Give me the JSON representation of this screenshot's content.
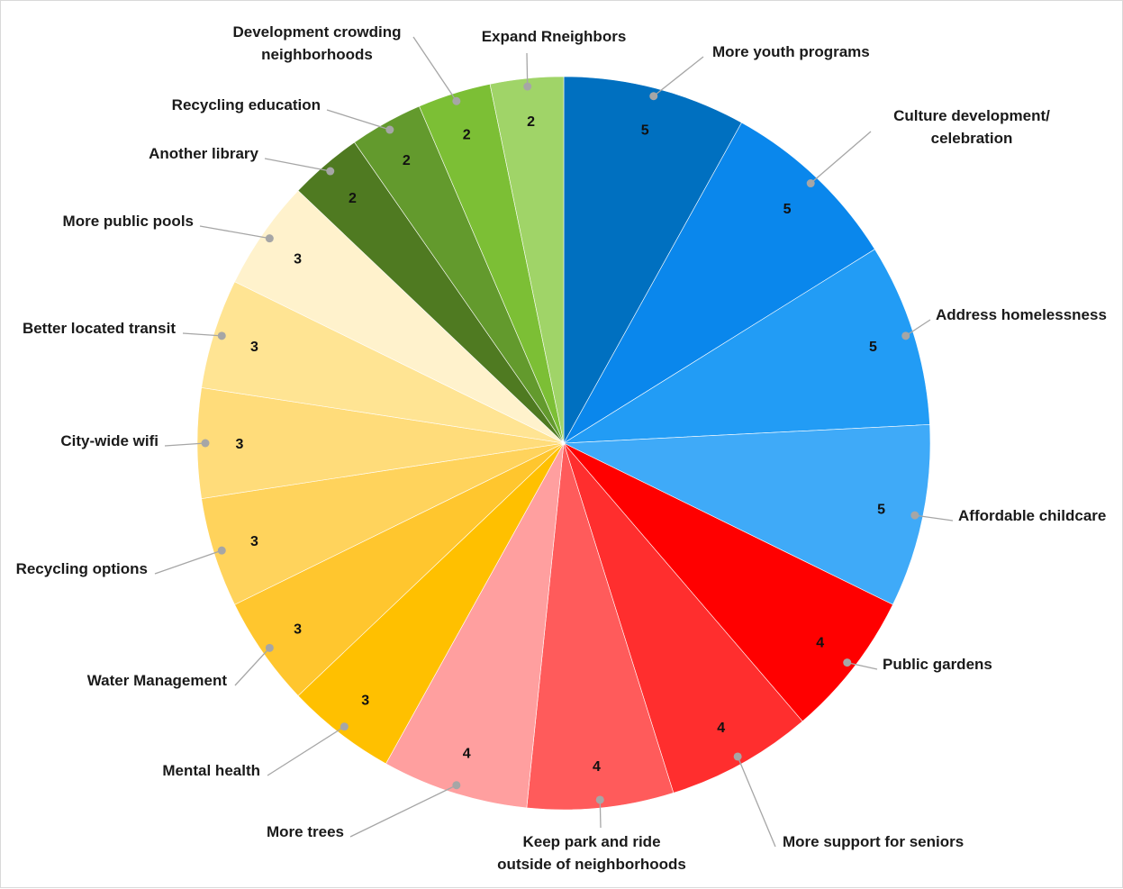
{
  "chart_data": {
    "type": "pie",
    "title": "",
    "slices": [
      {
        "label": "More youth programs",
        "value": 5,
        "color": "#0070C0"
      },
      {
        "label": "Culture development/ celebration",
        "value": 5,
        "color": "#0A87EC"
      },
      {
        "label": "Address homelessness",
        "value": 5,
        "color": "#229CF5"
      },
      {
        "label": "Affordable childcare",
        "value": 5,
        "color": "#3FAAF8"
      },
      {
        "label": "Public gardens",
        "value": 4,
        "color": "#FF0000"
      },
      {
        "label": "More support for seniors",
        "value": 4,
        "color": "#FF2E2E"
      },
      {
        "label": "Keep park and ride outside of neighborhoods",
        "value": 4,
        "color": "#FF5B5B"
      },
      {
        "label": "More trees",
        "value": 4,
        "color": "#FF9F9F"
      },
      {
        "label": "Mental health",
        "value": 3,
        "color": "#FFC000"
      },
      {
        "label": "Water Management",
        "value": 3,
        "color": "#FFC62E"
      },
      {
        "label": "Recycling options",
        "value": 3,
        "color": "#FFD35C"
      },
      {
        "label": "City-wide wifi",
        "value": 3,
        "color": "#FFDC7A"
      },
      {
        "label": "Better located transit",
        "value": 3,
        "color": "#FFE493"
      },
      {
        "label": "More public pools",
        "value": 3,
        "color": "#FFF2CC"
      },
      {
        "label": "Another library",
        "value": 2,
        "color": "#4F7A21"
      },
      {
        "label": "Recycling education",
        "value": 2,
        "color": "#639A2D"
      },
      {
        "label": "Development crowding neighborhoods",
        "value": 2,
        "color": "#7CBF35"
      },
      {
        "label": "Expand Rneighbors",
        "value": 2,
        "color": "#A0D468"
      }
    ],
    "category_label_lines": [
      [
        "More youth programs"
      ],
      [
        "Culture development/",
        "celebration"
      ],
      [
        "Address homelessness"
      ],
      [
        "Affordable childcare"
      ],
      [
        "Public gardens"
      ],
      [
        "More support for seniors"
      ],
      [
        "Keep park and ride",
        "outside of neighborhoods"
      ],
      [
        "More trees"
      ],
      [
        "Mental health"
      ],
      [
        "Water Management"
      ],
      [
        "Recycling  options"
      ],
      [
        "City-wide wifi"
      ],
      [
        "Better located transit"
      ],
      [
        "More public pools"
      ],
      [
        "Another library"
      ],
      [
        "Recycling  education"
      ],
      [
        "Development crowding",
        "neighborhoods"
      ],
      [
        "Expand  Rneighbors"
      ]
    ],
    "start_angle": "12 o'clock",
    "direction": "clockwise",
    "data_labels": "values inside slices",
    "legend": "none"
  }
}
